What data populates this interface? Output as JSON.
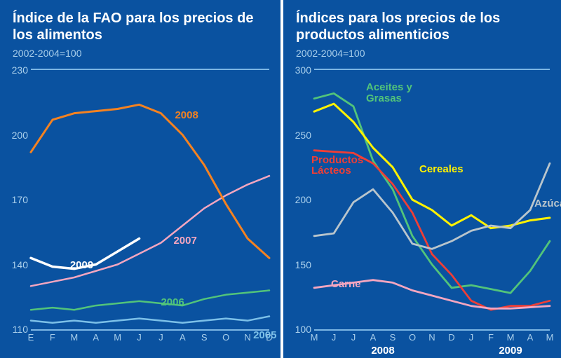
{
  "background_color": "#0a52a0",
  "rule_color": "#7cb6e4",
  "tick_color": "#a9cfeb",
  "left": {
    "title": "Índice de la FAO para los precios de los alimentos",
    "subtitle": "2002-2004=100",
    "type": "line",
    "ylim": [
      110,
      230
    ],
    "yticks": [
      110,
      140,
      170,
      200,
      230
    ],
    "x_labels": [
      "E",
      "F",
      "M",
      "A",
      "M",
      "J",
      "J",
      "A",
      "S",
      "O",
      "N",
      "D"
    ],
    "series": [
      {
        "name": "2005",
        "color": "#7cc0e8",
        "width": 2.5,
        "values": [
          114,
          113,
          114,
          113,
          114,
          115,
          114,
          113,
          114,
          115,
          114,
          116
        ],
        "label_at": 10,
        "label_dy": 12,
        "label_dx": 8
      },
      {
        "name": "2006",
        "color": "#52c47a",
        "width": 2.5,
        "values": [
          119,
          120,
          119,
          121,
          122,
          123,
          122,
          121,
          124,
          126,
          127,
          128
        ],
        "label_at": 6,
        "label_dy": -10,
        "label_dx": 0
      },
      {
        "name": "2007",
        "color": "#f4a6c0",
        "width": 2.5,
        "values": [
          130,
          132,
          134,
          137,
          140,
          145,
          150,
          158,
          166,
          172,
          177,
          181
        ],
        "label_at": 6,
        "label_dy": -12,
        "label_dx": 18
      },
      {
        "name": "2008",
        "color": "#f58220",
        "width": 3,
        "values": [
          192,
          207,
          210,
          211,
          212,
          214,
          210,
          200,
          186,
          168,
          152,
          143
        ],
        "label_at": 6,
        "label_dy": -6,
        "label_dx": 20
      },
      {
        "name": "2009",
        "color": "#ffffff",
        "width": 3.5,
        "values": [
          143,
          139,
          138,
          140,
          146,
          152
        ],
        "label_at": 2,
        "label_dy": -14,
        "label_dx": -6
      }
    ]
  },
  "right": {
    "title": "Índices para los precios de los productos alimenticios",
    "subtitle": "2002-2004=100",
    "type": "line",
    "ylim": [
      100,
      300
    ],
    "yticks": [
      100,
      150,
      200,
      250,
      300
    ],
    "x_labels": [
      "M",
      "J",
      "J",
      "A",
      "S",
      "O",
      "N",
      "D",
      "J",
      "F",
      "M",
      "A",
      "M"
    ],
    "x_group_labels": [
      {
        "text": "2008",
        "center_idx": 3.5
      },
      {
        "text": "2009",
        "center_idx": 10
      }
    ],
    "series": [
      {
        "name": "Aceites y Grasas",
        "color": "#52c47a",
        "width": 2.8,
        "values": [
          278,
          282,
          272,
          230,
          208,
          172,
          150,
          132,
          134,
          131,
          128,
          145,
          168
        ],
        "label_at": 1,
        "label_dy": -16,
        "label_dx": 46,
        "two_line": true
      },
      {
        "name": "Cereales",
        "color": "#fff200",
        "width": 3,
        "values": [
          268,
          274,
          260,
          240,
          225,
          200,
          192,
          180,
          188,
          178,
          180,
          184,
          186
        ],
        "label_at": 4,
        "label_dy": -6,
        "label_dx": 38
      },
      {
        "name": "Productos Lácteos",
        "color": "#ef3e36",
        "width": 2.8,
        "values": [
          238,
          237,
          236,
          228,
          212,
          190,
          158,
          142,
          122,
          115,
          118,
          118,
          122
        ],
        "label_at": 0,
        "label_dy": 6,
        "label_dx": -4,
        "two_line": true
      },
      {
        "name": "Azúcar",
        "color": "#b9c5cc",
        "width": 2.8,
        "values": [
          172,
          174,
          198,
          208,
          190,
          166,
          162,
          168,
          176,
          180,
          178,
          192,
          228
        ],
        "label_at": 11,
        "label_dy": -18,
        "label_dx": 6
      },
      {
        "name": "Carne",
        "color": "#f4a6c0",
        "width": 2.8,
        "values": [
          132,
          134,
          136,
          138,
          136,
          130,
          126,
          122,
          118,
          116,
          116,
          117,
          118
        ],
        "label_at": 1,
        "label_dy": -10,
        "label_dx": -4
      }
    ]
  }
}
